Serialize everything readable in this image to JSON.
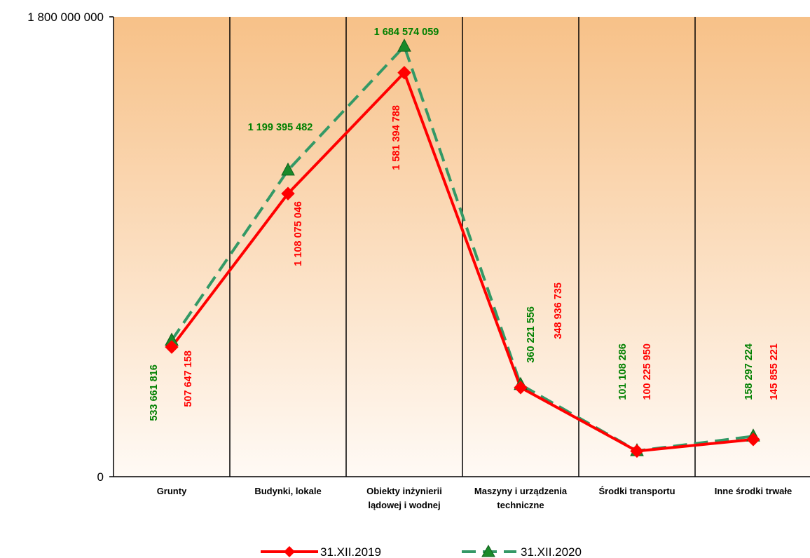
{
  "chart_data": {
    "type": "line",
    "categories": [
      [
        "Grunty"
      ],
      [
        "Budynki, lokale"
      ],
      [
        "Obiekty inżynierii",
        "lądowej i wodnej"
      ],
      [
        "Maszyny i urządzenia",
        "techniczne"
      ],
      [
        "Środki transportu"
      ],
      [
        "Inne środki trwałe"
      ]
    ],
    "ylim": [
      0,
      1800000000
    ],
    "yticks": [
      0,
      1800000000
    ],
    "ytick_labels": [
      "0",
      "1 800 000 000"
    ],
    "grid": "vertical category separators",
    "legend_position": "bottom",
    "series": [
      {
        "name": "31.XII.2019",
        "color": "#ff0000",
        "marker": "diamond",
        "dash": "solid",
        "values": [
          507647158,
          1108075046,
          1581394788,
          348936735,
          100225950,
          145855221
        ],
        "labels": [
          "507 647 158",
          "1 108 075 046",
          "1 581 394 788",
          "348 936 735",
          "100 225 950",
          "145 855 221"
        ]
      },
      {
        "name": "31.XII.2020",
        "color": "#339966",
        "marker": "triangle",
        "dash": "dashed",
        "values": [
          533661816,
          1199395482,
          1684574059,
          360221556,
          101108286,
          158297224
        ],
        "labels": [
          "533 661 816",
          "1 199 395 482",
          "1 684 574 059",
          "360 221 556",
          "101 108 286",
          "158 297 224"
        ]
      }
    ],
    "label_colors": {
      "s2019": "#ff0000",
      "s2020": "#008000"
    },
    "background_gradient": [
      "#f7c188",
      "#fffaf5"
    ]
  }
}
